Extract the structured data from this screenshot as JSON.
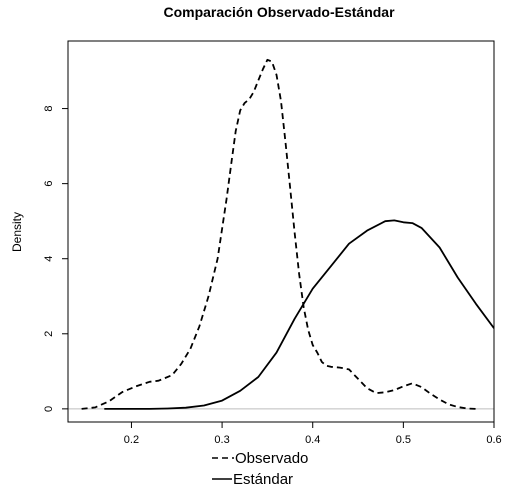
{
  "chart_data": {
    "type": "line",
    "title": "Comparación Observado-Estándar",
    "xlabel": "",
    "ylabel": "Density",
    "xlim": [
      0.13,
      0.6
    ],
    "ylim": [
      -0.35,
      9.8
    ],
    "x_ticks": [
      0.2,
      0.3,
      0.4,
      0.5,
      0.6
    ],
    "y_ticks": [
      0,
      2,
      4,
      6,
      8
    ],
    "grid": false,
    "baseline_y": 0,
    "legend_position": "bottom-center",
    "series": [
      {
        "name": "Observado",
        "line_style": "dashed",
        "color": "#000000",
        "x": [
          0.145,
          0.16,
          0.175,
          0.19,
          0.205,
          0.22,
          0.23,
          0.245,
          0.255,
          0.265,
          0.275,
          0.285,
          0.295,
          0.3,
          0.305,
          0.31,
          0.315,
          0.32,
          0.325,
          0.33,
          0.335,
          0.34,
          0.345,
          0.35,
          0.355,
          0.36,
          0.365,
          0.37,
          0.375,
          0.38,
          0.385,
          0.39,
          0.395,
          0.4,
          0.405,
          0.41,
          0.415,
          0.42,
          0.43,
          0.44,
          0.45,
          0.46,
          0.47,
          0.48,
          0.49,
          0.5,
          0.51,
          0.52,
          0.53,
          0.54,
          0.55,
          0.56,
          0.57,
          0.58
        ],
        "y": [
          0.0,
          0.04,
          0.2,
          0.45,
          0.6,
          0.72,
          0.75,
          0.9,
          1.2,
          1.6,
          2.2,
          3.0,
          4.0,
          4.8,
          5.6,
          6.5,
          7.4,
          7.95,
          8.15,
          8.25,
          8.45,
          8.75,
          9.05,
          9.3,
          9.25,
          8.9,
          8.2,
          7.1,
          5.9,
          4.7,
          3.6,
          2.7,
          2.1,
          1.7,
          1.5,
          1.25,
          1.15,
          1.12,
          1.1,
          1.05,
          0.8,
          0.55,
          0.42,
          0.44,
          0.5,
          0.6,
          0.68,
          0.58,
          0.4,
          0.25,
          0.12,
          0.05,
          0.01,
          0.0
        ]
      },
      {
        "name": "Estándar",
        "line_style": "solid",
        "color": "#000000",
        "x": [
          0.17,
          0.2,
          0.22,
          0.24,
          0.26,
          0.28,
          0.3,
          0.32,
          0.34,
          0.36,
          0.38,
          0.4,
          0.42,
          0.44,
          0.46,
          0.48,
          0.49,
          0.5,
          0.51,
          0.52,
          0.54,
          0.56,
          0.58,
          0.6
        ],
        "y": [
          0.0,
          0.0,
          0.0,
          0.01,
          0.03,
          0.09,
          0.22,
          0.48,
          0.85,
          1.5,
          2.4,
          3.2,
          3.8,
          4.4,
          4.75,
          5.0,
          5.02,
          4.97,
          4.95,
          4.82,
          4.3,
          3.5,
          2.8,
          2.15
        ]
      }
    ]
  }
}
